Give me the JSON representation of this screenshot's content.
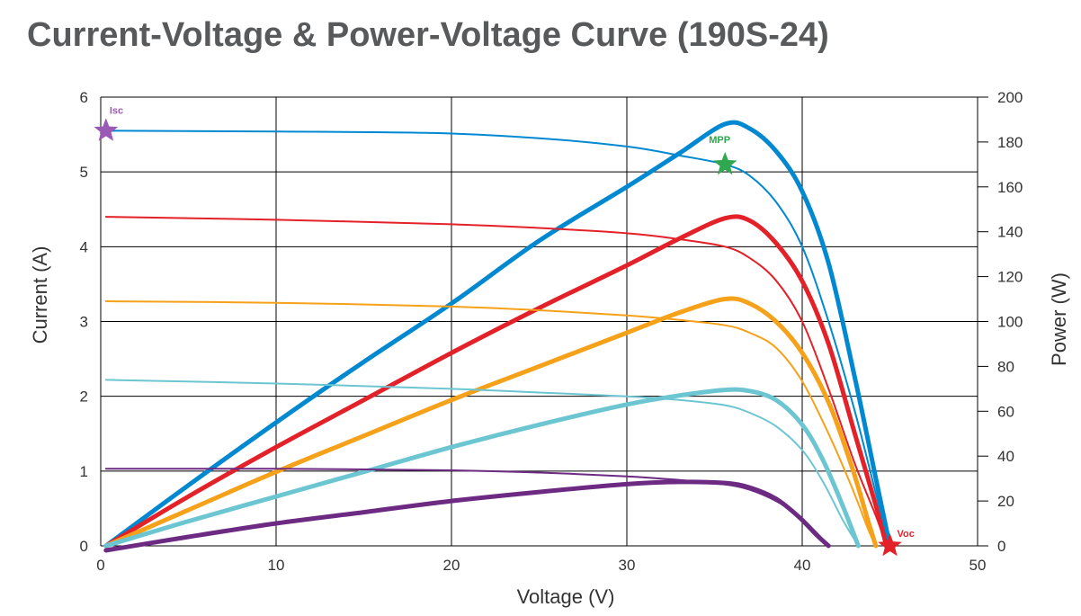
{
  "chart_data": {
    "type": "line",
    "title": "Current-Voltage & Power-Voltage Curve (190S-24)",
    "xlabel": "Voltage (V)",
    "ylabel": "Current (A)",
    "y2label": "Power (W)",
    "xlim": [
      0,
      50
    ],
    "ylim": [
      0,
      6
    ],
    "y2lim": [
      0,
      200
    ],
    "xticks": [
      "0",
      "10",
      "20",
      "30",
      "40",
      "50"
    ],
    "yticks": [
      "0",
      "1",
      "2",
      "3",
      "4",
      "5",
      "6"
    ],
    "y2ticks": [
      "0",
      "20",
      "40",
      "60",
      "80",
      "100",
      "120",
      "140",
      "160",
      "180",
      "200"
    ],
    "grid": true,
    "curves": [
      {
        "color": "#0088d1",
        "iv": [
          [
            0.3,
            5.55
          ],
          [
            10,
            5.54
          ],
          [
            19,
            5.52
          ],
          [
            25,
            5.45
          ],
          [
            30,
            5.34
          ],
          [
            33,
            5.22
          ],
          [
            35.6,
            5.1
          ],
          [
            37,
            4.95
          ],
          [
            38.5,
            4.6
          ],
          [
            40,
            4.0
          ],
          [
            41.5,
            3.0
          ],
          [
            43,
            1.8
          ],
          [
            44.2,
            0.7
          ],
          [
            45,
            0
          ]
        ],
        "pv": [
          [
            0.3,
            0
          ],
          [
            5,
            27
          ],
          [
            10,
            55
          ],
          [
            15,
            82
          ],
          [
            20,
            108
          ],
          [
            25,
            136
          ],
          [
            30,
            160
          ],
          [
            33,
            175
          ],
          [
            35.6,
            188
          ],
          [
            37,
            186
          ],
          [
            38.5,
            176
          ],
          [
            40,
            158
          ],
          [
            41.5,
            126
          ],
          [
            43,
            75
          ],
          [
            44.2,
            30
          ],
          [
            45,
            0
          ]
        ]
      },
      {
        "color": "#e32128",
        "iv": [
          [
            0.3,
            4.4
          ],
          [
            10,
            4.36
          ],
          [
            20,
            4.3
          ],
          [
            25,
            4.25
          ],
          [
            30,
            4.18
          ],
          [
            33,
            4.1
          ],
          [
            35.6,
            4.0
          ],
          [
            37,
            3.85
          ],
          [
            38.5,
            3.55
          ],
          [
            40,
            3.0
          ],
          [
            41.5,
            2.1
          ],
          [
            43,
            1.1
          ],
          [
            44.2,
            0.4
          ],
          [
            44.8,
            0
          ]
        ],
        "pv": [
          [
            0.3,
            0
          ],
          [
            5,
            22
          ],
          [
            10,
            44
          ],
          [
            15,
            65
          ],
          [
            20,
            86
          ],
          [
            25,
            106
          ],
          [
            30,
            125
          ],
          [
            33,
            137
          ],
          [
            35.6,
            146
          ],
          [
            37,
            145
          ],
          [
            38.5,
            135
          ],
          [
            40,
            118
          ],
          [
            41.5,
            90
          ],
          [
            43,
            50
          ],
          [
            44.2,
            18
          ],
          [
            44.8,
            0
          ]
        ]
      },
      {
        "color": "#f6a11a",
        "iv": [
          [
            0.3,
            3.27
          ],
          [
            10,
            3.25
          ],
          [
            20,
            3.2
          ],
          [
            25,
            3.15
          ],
          [
            30,
            3.08
          ],
          [
            33,
            3.02
          ],
          [
            35.6,
            2.95
          ],
          [
            37,
            2.85
          ],
          [
            38.5,
            2.65
          ],
          [
            40,
            2.2
          ],
          [
            41.5,
            1.5
          ],
          [
            42.8,
            0.8
          ],
          [
            43.8,
            0.2
          ],
          [
            44.2,
            0
          ]
        ],
        "pv": [
          [
            0.3,
            0
          ],
          [
            5,
            16
          ],
          [
            10,
            33
          ],
          [
            15,
            49
          ],
          [
            20,
            65
          ],
          [
            25,
            80
          ],
          [
            30,
            95
          ],
          [
            33,
            104
          ],
          [
            35.6,
            110
          ],
          [
            37,
            108
          ],
          [
            38.5,
            100
          ],
          [
            40,
            86
          ],
          [
            41.5,
            64
          ],
          [
            42.8,
            36
          ],
          [
            43.8,
            10
          ],
          [
            44.2,
            0
          ]
        ]
      },
      {
        "color": "#6cc6d2",
        "iv": [
          [
            0.3,
            2.22
          ],
          [
            10,
            2.17
          ],
          [
            20,
            2.1
          ],
          [
            25,
            2.05
          ],
          [
            30,
            2.0
          ],
          [
            33,
            1.95
          ],
          [
            35.6,
            1.88
          ],
          [
            37,
            1.78
          ],
          [
            38.5,
            1.6
          ],
          [
            40,
            1.28
          ],
          [
            41.2,
            0.85
          ],
          [
            42.3,
            0.35
          ],
          [
            43.2,
            0
          ]
        ],
        "pv": [
          [
            0.3,
            0
          ],
          [
            5,
            11
          ],
          [
            10,
            22
          ],
          [
            15,
            33
          ],
          [
            20,
            44
          ],
          [
            25,
            54
          ],
          [
            30,
            63
          ],
          [
            33,
            67
          ],
          [
            35.6,
            69.5
          ],
          [
            37,
            69
          ],
          [
            38.5,
            65
          ],
          [
            40,
            54
          ],
          [
            41.2,
            38
          ],
          [
            42.3,
            18
          ],
          [
            43.2,
            0
          ]
        ]
      },
      {
        "color": "#6c2a83",
        "iv": [
          [
            0.3,
            1.03
          ],
          [
            10,
            1.03
          ],
          [
            20,
            1.01
          ],
          [
            25,
            0.98
          ],
          [
            30,
            0.93
          ],
          [
            33,
            0.88
          ],
          [
            35.6,
            0.82
          ],
          [
            37,
            0.75
          ],
          [
            38.5,
            0.6
          ],
          [
            39.8,
            0.4
          ],
          [
            40.8,
            0.18
          ],
          [
            41.5,
            0
          ]
        ],
        "pv": [
          [
            0.3,
            -2
          ],
          [
            5,
            4
          ],
          [
            10,
            10
          ],
          [
            15,
            15
          ],
          [
            20,
            20
          ],
          [
            25,
            24
          ],
          [
            30,
            27.5
          ],
          [
            33,
            28.5
          ],
          [
            35.6,
            28
          ],
          [
            37,
            26
          ],
          [
            38.5,
            21
          ],
          [
            39.8,
            13
          ],
          [
            40.8,
            5
          ],
          [
            41.5,
            0
          ]
        ]
      }
    ],
    "markers": [
      {
        "label": "Isc",
        "x": 0.3,
        "y": 5.55,
        "color": "#9b59b6"
      },
      {
        "label": "MPP",
        "x": 35.6,
        "y": 5.1,
        "color": "#2fa84f"
      },
      {
        "label": "Voc",
        "x": 45,
        "y": 0,
        "color": "#e32128"
      }
    ]
  }
}
